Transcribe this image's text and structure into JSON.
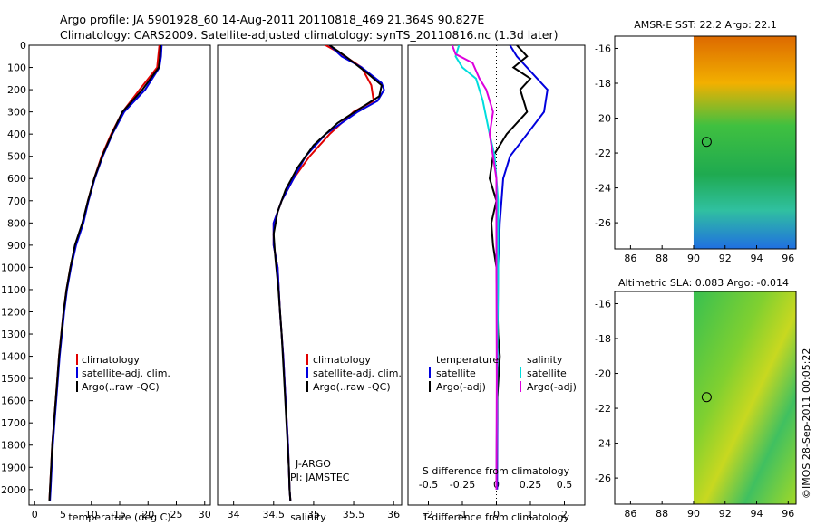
{
  "title": {
    "line1": "Argo profile: JA 5901928_60 14-Aug-2011 20110818_469 21.364S 90.827E",
    "line2": "Climatology: CARS2009. Satellite-adjusted climatology: synTS_20110816.nc (1.3d later)"
  },
  "colors": {
    "climatology": "#e00000",
    "satellite": "#0000dd",
    "argo": "#000000",
    "sal_satellite": "#00dddd",
    "sal_argo": "#dd00dd"
  },
  "chart_data": [
    {
      "id": "temperature",
      "type": "line",
      "xlabel": "temperature (deg C)",
      "xlim": [
        -1,
        31
      ],
      "xticks": [
        0,
        5,
        10,
        15,
        20,
        25,
        30
      ],
      "ylim": [
        2070,
        0
      ],
      "yticks": [
        0,
        100,
        200,
        300,
        400,
        500,
        600,
        700,
        800,
        900,
        1000,
        1100,
        1200,
        1300,
        1400,
        1500,
        1600,
        1700,
        1800,
        1900,
        2000
      ],
      "legend": [
        "climatology",
        "satellite-adj. clim.",
        "Argo(..raw -QC)"
      ],
      "series": [
        {
          "name": "climatology",
          "color": "#e00000",
          "points": [
            [
              22,
              0
            ],
            [
              21.8,
              50
            ],
            [
              21.6,
              100
            ],
            [
              18.5,
              200
            ],
            [
              15.5,
              300
            ],
            [
              13.5,
              400
            ],
            [
              11.8,
              500
            ],
            [
              10.5,
              600
            ],
            [
              9.4,
              700
            ],
            [
              8.5,
              800
            ],
            [
              7.2,
              900
            ],
            [
              6.3,
              1000
            ],
            [
              5.6,
              1100
            ],
            [
              5.1,
              1200
            ],
            [
              4.7,
              1300
            ],
            [
              4.3,
              1400
            ],
            [
              4,
              1500
            ],
            [
              3.7,
              1600
            ],
            [
              3.4,
              1700
            ],
            [
              3.1,
              1800
            ],
            [
              2.9,
              1900
            ],
            [
              2.7,
              2000
            ],
            [
              2.6,
              2050
            ]
          ]
        },
        {
          "name": "satellite-adj. clim.",
          "color": "#0000dd",
          "points": [
            [
              22.4,
              0
            ],
            [
              22.3,
              50
            ],
            [
              22,
              100
            ],
            [
              19.5,
              200
            ],
            [
              15.8,
              300
            ],
            [
              13.7,
              400
            ],
            [
              12,
              500
            ],
            [
              10.6,
              600
            ],
            [
              9.5,
              700
            ],
            [
              8.6,
              800
            ],
            [
              7.3,
              900
            ],
            [
              6.4,
              1000
            ],
            [
              5.7,
              1100
            ],
            [
              5.2,
              1200
            ],
            [
              4.8,
              1300
            ],
            [
              4.4,
              1400
            ],
            [
              4.1,
              1500
            ],
            [
              3.8,
              1600
            ],
            [
              3.5,
              1700
            ],
            [
              3.2,
              1800
            ],
            [
              3,
              1900
            ],
            [
              2.8,
              2000
            ],
            [
              2.7,
              2050
            ]
          ]
        },
        {
          "name": "Argo(..raw -QC)",
          "color": "#000000",
          "points": [
            [
              22.2,
              0
            ],
            [
              22.1,
              50
            ],
            [
              21.9,
              100
            ],
            [
              19,
              200
            ],
            [
              15.5,
              300
            ],
            [
              13.6,
              400
            ],
            [
              11.9,
              500
            ],
            [
              10.5,
              600
            ],
            [
              9.4,
              700
            ],
            [
              8.4,
              800
            ],
            [
              7.1,
              900
            ],
            [
              6.3,
              1000
            ],
            [
              5.6,
              1100
            ],
            [
              5.1,
              1200
            ],
            [
              4.7,
              1300
            ],
            [
              4.3,
              1400
            ],
            [
              4,
              1500
            ],
            [
              3.7,
              1600
            ],
            [
              3.4,
              1700
            ],
            [
              3.1,
              1800
            ],
            [
              2.9,
              1900
            ],
            [
              2.7,
              2000
            ],
            [
              2.6,
              2050
            ]
          ]
        }
      ]
    },
    {
      "id": "salinity",
      "type": "line",
      "xlabel": "salinity",
      "xlim": [
        33.8,
        36.1
      ],
      "xticks": [
        34,
        34.5,
        35,
        35.5,
        36
      ],
      "ylim": [
        2070,
        0
      ],
      "legend": [
        "climatology",
        "satellite-adj. clim.",
        "Argo(..raw -QC)"
      ],
      "annotation": [
        "J-ARGO",
        "PI: JAMSTEC"
      ],
      "series": [
        {
          "name": "climatology",
          "color": "#e00000",
          "points": [
            [
              35.15,
              0
            ],
            [
              35.35,
              40
            ],
            [
              35.6,
              100
            ],
            [
              35.72,
              180
            ],
            [
              35.75,
              250
            ],
            [
              35.5,
              300
            ],
            [
              35.2,
              400
            ],
            [
              34.95,
              500
            ],
            [
              34.75,
              600
            ],
            [
              34.6,
              700
            ],
            [
              34.5,
              800
            ],
            [
              34.5,
              900
            ],
            [
              34.55,
              1000
            ],
            [
              34.58,
              1200
            ],
            [
              34.62,
              1400
            ],
            [
              34.65,
              1600
            ],
            [
              34.68,
              1800
            ],
            [
              34.7,
              2000
            ],
            [
              34.71,
              2050
            ]
          ]
        },
        {
          "name": "satellite-adj. clim.",
          "color": "#0000dd",
          "points": [
            [
              35.2,
              0
            ],
            [
              35.35,
              50
            ],
            [
              35.6,
              100
            ],
            [
              35.85,
              170
            ],
            [
              35.88,
              200
            ],
            [
              35.8,
              250
            ],
            [
              35.55,
              300
            ],
            [
              35.15,
              400
            ],
            [
              34.9,
              500
            ],
            [
              34.75,
              600
            ],
            [
              34.6,
              700
            ],
            [
              34.5,
              800
            ],
            [
              34.5,
              900
            ],
            [
              34.55,
              1000
            ],
            [
              34.58,
              1200
            ],
            [
              34.62,
              1400
            ],
            [
              34.65,
              1600
            ],
            [
              34.68,
              1800
            ],
            [
              34.7,
              2000
            ],
            [
              34.71,
              2050
            ]
          ]
        },
        {
          "name": "Argo(..raw -QC)",
          "color": "#000000",
          "points": [
            [
              35.2,
              0
            ],
            [
              35.4,
              50
            ],
            [
              35.65,
              120
            ],
            [
              35.85,
              180
            ],
            [
              35.82,
              230
            ],
            [
              35.6,
              280
            ],
            [
              35.3,
              350
            ],
            [
              35,
              450
            ],
            [
              34.8,
              550
            ],
            [
              34.65,
              650
            ],
            [
              34.55,
              750
            ],
            [
              34.5,
              850
            ],
            [
              34.52,
              950
            ],
            [
              34.56,
              1100
            ],
            [
              34.6,
              1300
            ],
            [
              34.63,
              1500
            ],
            [
              34.66,
              1700
            ],
            [
              34.69,
              1900
            ],
            [
              34.7,
              2000
            ],
            [
              34.71,
              2050
            ]
          ]
        }
      ]
    },
    {
      "id": "differences",
      "type": "line",
      "xlabel": "T difference from climatology",
      "xlabel_top": "S difference from climatology",
      "xlim": [
        -2.6,
        2.6
      ],
      "xticks": [
        -2,
        -1,
        0,
        1,
        2
      ],
      "xticks_S": [
        -0.5,
        -0.25,
        0,
        0.25,
        0.5
      ],
      "xticks_S_labels": [
        "-0.5",
        "-0.25",
        "0",
        "0.25",
        "0.5"
      ],
      "ylim": [
        2070,
        0
      ],
      "legend_temperature": {
        "heading": "temperature",
        "items": [
          "satellite",
          "Argo(-adj)"
        ]
      },
      "legend_salinity": {
        "heading": "salinity",
        "items": [
          "satellite",
          "Argo(-adj)"
        ]
      },
      "series": [
        {
          "name": "temperature satellite",
          "color": "#0000dd",
          "points": [
            [
              0.4,
              0
            ],
            [
              0.6,
              50
            ],
            [
              1.2,
              150
            ],
            [
              1.5,
              200
            ],
            [
              1.4,
              300
            ],
            [
              0.9,
              400
            ],
            [
              0.4,
              500
            ],
            [
              0.2,
              600
            ],
            [
              0.1,
              800
            ],
            [
              0.05,
              1000
            ],
            [
              0.03,
              1500
            ],
            [
              0.02,
              2000
            ]
          ]
        },
        {
          "name": "temperature Argo(-adj)",
          "color": "#000000",
          "points": [
            [
              0.6,
              0
            ],
            [
              0.9,
              50
            ],
            [
              0.5,
              100
            ],
            [
              1,
              150
            ],
            [
              0.7,
              200
            ],
            [
              0.9,
              300
            ],
            [
              0.3,
              400
            ],
            [
              -0.1,
              500
            ],
            [
              -0.2,
              600
            ],
            [
              0,
              700
            ],
            [
              -0.15,
              800
            ],
            [
              -0.1,
              900
            ],
            [
              0,
              1000
            ],
            [
              0.05,
              1300
            ],
            [
              0.1,
              1400
            ],
            [
              0.02,
              1600
            ],
            [
              0,
              2000
            ]
          ]
        },
        {
          "name": "salinity satellite",
          "color": "#00dddd",
          "points": [
            [
              -1.1,
              0
            ],
            [
              -1.2,
              50
            ],
            [
              -1,
              100
            ],
            [
              -0.6,
              150
            ],
            [
              -0.4,
              250
            ],
            [
              -0.2,
              400
            ],
            [
              -0.05,
              500
            ],
            [
              0.05,
              700
            ],
            [
              0.05,
              1000
            ],
            [
              0.02,
              1500
            ],
            [
              0,
              2000
            ]
          ]
        },
        {
          "name": "salinity Argo(-adj)",
          "color": "#dd00dd",
          "points": [
            [
              -1.3,
              0
            ],
            [
              -1.2,
              40
            ],
            [
              -0.7,
              80
            ],
            [
              -0.5,
              150
            ],
            [
              -0.3,
              200
            ],
            [
              -0.1,
              300
            ],
            [
              -0.2,
              400
            ],
            [
              -0.1,
              500
            ],
            [
              0,
              600
            ],
            [
              0,
              700
            ],
            [
              0,
              1000
            ],
            [
              0.01,
              1500
            ],
            [
              0,
              2000
            ]
          ]
        }
      ]
    },
    {
      "id": "amsre_map",
      "type": "heatmap",
      "title": "AMSR-E SST: 22.2 Argo: 22.1",
      "xlim": [
        85,
        96.5
      ],
      "xticks": [
        86,
        88,
        90,
        92,
        94,
        96
      ],
      "ylim": [
        -27.5,
        -15.3
      ],
      "yticks": [
        -16,
        -18,
        -20,
        -22,
        -24,
        -26
      ],
      "data_xrange": [
        90,
        96.5
      ],
      "marker": [
        90.83,
        -21.36
      ]
    },
    {
      "id": "sla_map",
      "type": "heatmap",
      "title": "Altimetric SLA: 0.083 Argo: -0.014",
      "xlim": [
        85,
        96.5
      ],
      "xticks": [
        86,
        88,
        90,
        92,
        94,
        96
      ],
      "ylim": [
        -27.5,
        -15.3
      ],
      "yticks": [
        -16,
        -18,
        -20,
        -22,
        -24,
        -26
      ],
      "data_xrange": [
        90,
        96.5
      ],
      "marker": [
        90.83,
        -21.36
      ]
    }
  ],
  "footer": {
    "stamp": "©IMOS 28-Sep-2011 00:05:22"
  }
}
